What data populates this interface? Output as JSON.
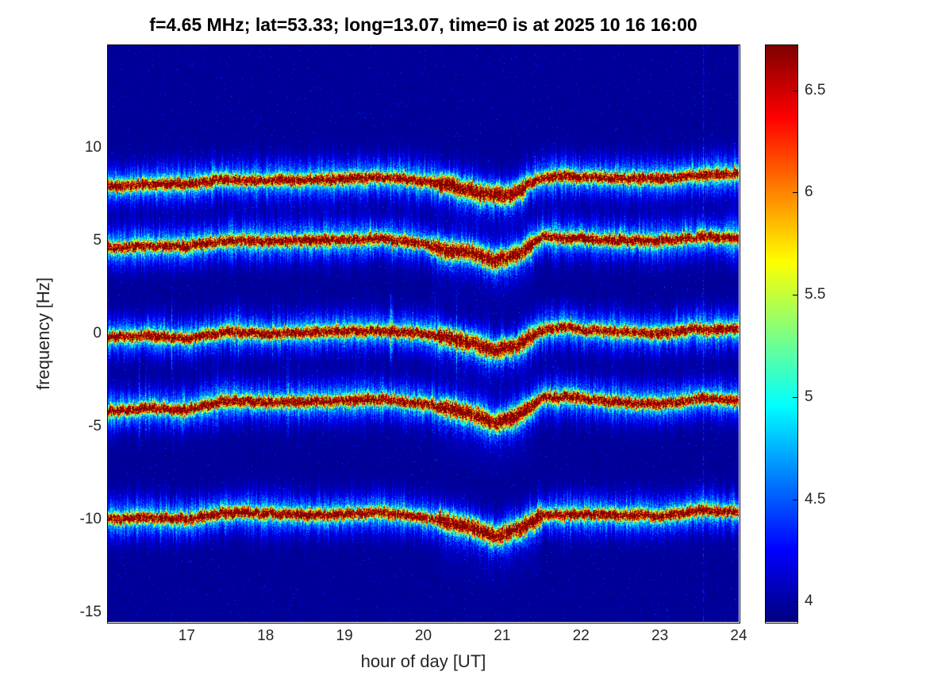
{
  "chart_data": {
    "type": "heatmap",
    "title": "f=4.65 MHz;  lat=53.33; long=13.07, time=0 is at 2025 10 16 16:00",
    "xlabel": "hour of day [UT]",
    "ylabel": "frequency [Hz]",
    "xlim": [
      16,
      24
    ],
    "ylim": [
      -15.5,
      15.5
    ],
    "xticks": [
      17,
      18,
      19,
      20,
      21,
      22,
      23,
      24
    ],
    "yticks": [
      10,
      5,
      0,
      -5,
      -10,
      -15
    ],
    "grid": false,
    "background_color": "#ffffff",
    "colorbar": {
      "colormap": "jet",
      "clim": [
        3.9,
        6.72
      ],
      "ticks": [
        4,
        4.5,
        5,
        5.5,
        6,
        6.5
      ],
      "position": "right"
    },
    "streak_hour": 23.55,
    "traces": [
      {
        "name": "doppler-trace-plus8",
        "dip": [
          20.2,
          21.3
        ],
        "points": [
          [
            16,
            7.9
          ],
          [
            16.5,
            8.0
          ],
          [
            17,
            8.05
          ],
          [
            17.5,
            8.3
          ],
          [
            18,
            8.2
          ],
          [
            18.5,
            8.25
          ],
          [
            19,
            8.3
          ],
          [
            19.5,
            8.4
          ],
          [
            20,
            8.2
          ],
          [
            20.4,
            7.9
          ],
          [
            20.8,
            7.5
          ],
          [
            21.1,
            7.4
          ],
          [
            21.4,
            8.2
          ],
          [
            21.7,
            8.5
          ],
          [
            22,
            8.4
          ],
          [
            22.5,
            8.35
          ],
          [
            23,
            8.3
          ],
          [
            23.5,
            8.5
          ],
          [
            24,
            8.6
          ]
        ]
      },
      {
        "name": "doppler-trace-plus5",
        "dip": [
          20.1,
          21.4
        ],
        "points": [
          [
            16,
            4.6
          ],
          [
            16.5,
            4.7
          ],
          [
            17,
            4.7
          ],
          [
            17.5,
            5.0
          ],
          [
            18,
            4.95
          ],
          [
            18.5,
            5.0
          ],
          [
            19,
            5.05
          ],
          [
            19.5,
            5.1
          ],
          [
            20,
            4.8
          ],
          [
            20.3,
            4.5
          ],
          [
            20.6,
            4.4
          ],
          [
            20.9,
            3.9
          ],
          [
            21.2,
            4.3
          ],
          [
            21.5,
            5.2
          ],
          [
            22,
            5.1
          ],
          [
            22.5,
            5.0
          ],
          [
            23,
            5.0
          ],
          [
            23.5,
            5.2
          ],
          [
            24,
            5.15
          ]
        ]
      },
      {
        "name": "doppler-trace-0",
        "dip": [
          20.2,
          21.4
        ],
        "points": [
          [
            16,
            -0.2
          ],
          [
            16.5,
            -0.1
          ],
          [
            17,
            -0.3
          ],
          [
            17.5,
            0.1
          ],
          [
            18,
            0.0
          ],
          [
            18.5,
            0.05
          ],
          [
            19,
            0.1
          ],
          [
            19.5,
            0.15
          ],
          [
            20,
            0.0
          ],
          [
            20.3,
            -0.2
          ],
          [
            20.6,
            -0.5
          ],
          [
            20.9,
            -0.9
          ],
          [
            21.2,
            -0.6
          ],
          [
            21.5,
            0.2
          ],
          [
            21.8,
            0.35
          ],
          [
            22,
            0.2
          ],
          [
            22.5,
            0.1
          ],
          [
            23,
            0.0
          ],
          [
            23.5,
            0.25
          ],
          [
            24,
            0.2
          ]
        ]
      },
      {
        "name": "doppler-trace-minus4",
        "dip": [
          20.2,
          21.4
        ],
        "points": [
          [
            16,
            -4.2
          ],
          [
            16.5,
            -4.0
          ],
          [
            17,
            -4.1
          ],
          [
            17.5,
            -3.6
          ],
          [
            18,
            -3.7
          ],
          [
            18.5,
            -3.65
          ],
          [
            19,
            -3.6
          ],
          [
            19.5,
            -3.55
          ],
          [
            20,
            -3.8
          ],
          [
            20.3,
            -4.0
          ],
          [
            20.6,
            -4.3
          ],
          [
            20.9,
            -4.8
          ],
          [
            21.2,
            -4.4
          ],
          [
            21.5,
            -3.5
          ],
          [
            21.8,
            -3.4
          ],
          [
            22,
            -3.5
          ],
          [
            22.5,
            -3.7
          ],
          [
            23,
            -3.8
          ],
          [
            23.5,
            -3.5
          ],
          [
            24,
            -3.6
          ]
        ]
      },
      {
        "name": "doppler-trace-minus10",
        "dip": [
          20.2,
          21.5
        ],
        "points": [
          [
            16,
            -10.0
          ],
          [
            16.5,
            -9.9
          ],
          [
            17,
            -10.0
          ],
          [
            17.5,
            -9.6
          ],
          [
            18,
            -9.7
          ],
          [
            18.5,
            -9.75
          ],
          [
            19,
            -9.7
          ],
          [
            19.5,
            -9.6
          ],
          [
            20,
            -9.9
          ],
          [
            20.3,
            -10.1
          ],
          [
            20.6,
            -10.4
          ],
          [
            20.9,
            -10.9
          ],
          [
            21.2,
            -10.5
          ],
          [
            21.5,
            -9.8
          ],
          [
            22,
            -9.7
          ],
          [
            22.5,
            -9.75
          ],
          [
            23,
            -9.8
          ],
          [
            23.5,
            -9.5
          ],
          [
            24,
            -9.6
          ]
        ]
      }
    ]
  }
}
